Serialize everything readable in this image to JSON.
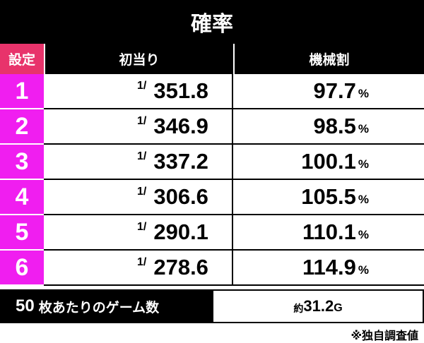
{
  "title": "確率",
  "table": {
    "headers": [
      "設定",
      "初当り",
      "機械割"
    ],
    "rows": [
      {
        "setting": "1",
        "hit_prefix": "1/",
        "hit": "351.8",
        "rate": "97.7",
        "rate_unit": "%"
      },
      {
        "setting": "2",
        "hit_prefix": "1/",
        "hit": "346.9",
        "rate": "98.5",
        "rate_unit": "%"
      },
      {
        "setting": "3",
        "hit_prefix": "1/",
        "hit": "337.2",
        "rate": "100.1",
        "rate_unit": "%"
      },
      {
        "setting": "4",
        "hit_prefix": "1/",
        "hit": "306.6",
        "rate": "105.5",
        "rate_unit": "%"
      },
      {
        "setting": "5",
        "hit_prefix": "1/",
        "hit": "290.1",
        "rate": "110.1",
        "rate_unit": "%"
      },
      {
        "setting": "6",
        "hit_prefix": "1/",
        "hit": "278.6",
        "rate": "114.9",
        "rate_unit": "%"
      }
    ]
  },
  "footer": {
    "label_number": "50",
    "label_text": "枚あたりのゲーム数",
    "value_prefix": "約",
    "value": "31.2",
    "value_unit": "G"
  },
  "note": "※独自調査値"
}
